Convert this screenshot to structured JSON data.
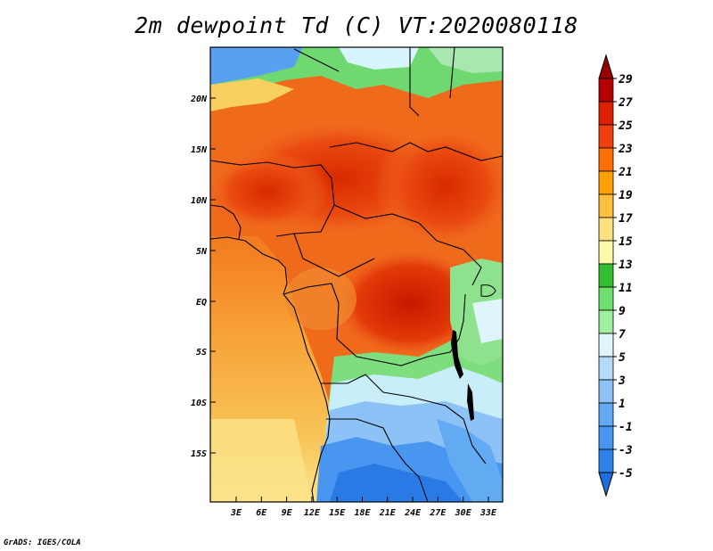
{
  "title": "2m dewpoint Td (C) VT:2020080118",
  "credit": "GrADS: IGES/COLA",
  "map": {
    "lat_labels": [
      "20N",
      "15N",
      "10N",
      "5N",
      "EQ",
      "5S",
      "10S",
      "15S"
    ],
    "lon_labels": [
      "3E",
      "6E",
      "9E",
      "12E",
      "15E",
      "18E",
      "21E",
      "24E",
      "27E",
      "30E",
      "33E"
    ]
  },
  "colorbar": {
    "levels": [
      "-5",
      "-3",
      "-1",
      "1",
      "3",
      "5",
      "7",
      "9",
      "11",
      "13",
      "15",
      "17",
      "19",
      "21",
      "23",
      "25",
      "27",
      "29"
    ],
    "colors": [
      "#1e6ee0",
      "#2d82ea",
      "#4896f0",
      "#62aaf2",
      "#8cc2f6",
      "#b4dafa",
      "#e0f4fc",
      "#a0f0a0",
      "#6ee06e",
      "#32c032",
      "#fffaaa",
      "#ffe080",
      "#ffc040",
      "#ffa000",
      "#ff7000",
      "#f04010",
      "#dc2000",
      "#b40000",
      "#960000"
    ]
  }
}
